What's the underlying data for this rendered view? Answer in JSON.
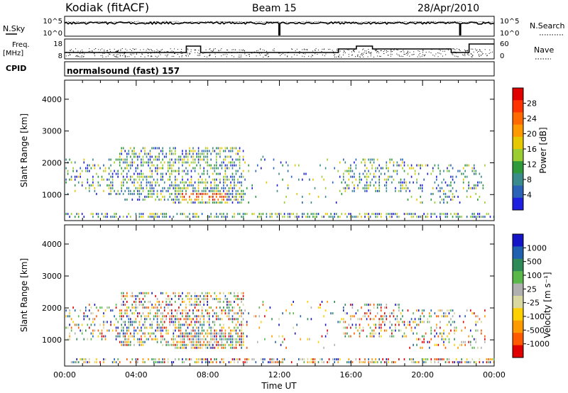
{
  "header": {
    "station": "Kodiak (fitACF)",
    "beam": "Beam 15",
    "date": "28/Apr/2010"
  },
  "strip_labels": {
    "nsky": "N.Sky",
    "nsky_ticks": [
      "10^5",
      "10^0"
    ],
    "nsearch": "N.Search",
    "nsearch_ticks": [
      "10^5",
      "10^0"
    ],
    "freq": "Freq.",
    "freq_unit": "[MHz]",
    "freq_ticks": [
      "18",
      "8"
    ],
    "nave": "Nave",
    "nave_ticks": [
      "60",
      "0"
    ],
    "cpid": "CPID",
    "program": "normalsound (fast) 157"
  },
  "colors": {
    "power_scale": [
      "#1f1fe0",
      "#2a62b8",
      "#3a8c8c",
      "#2e9a3c",
      "#9acd32",
      "#e6c800",
      "#ff9900",
      "#ff6a00",
      "#ff3300",
      "#e00000"
    ],
    "velocity_scale": [
      "#1515c8",
      "#2060b0",
      "#2e8b57",
      "#5ab84a",
      "#b0b0b0",
      "#d8d8a0",
      "#ffd000",
      "#ff9a00",
      "#ff5a00",
      "#e00000"
    ]
  },
  "chart_data": [
    {
      "type": "heatmap",
      "name": "power",
      "xlabel": "",
      "ylabel": "Slant Range [km]",
      "xlim": [
        0,
        24
      ],
      "ylim": [
        180,
        4600
      ],
      "y_ticks": [
        "1000",
        "2000",
        "3000",
        "4000"
      ],
      "colorbar": {
        "label": "Power [dB]",
        "ticks": [
          "4",
          "8",
          "12",
          "16",
          "20",
          "24",
          "28"
        ],
        "range": [
          0,
          32
        ]
      }
    },
    {
      "type": "heatmap",
      "name": "velocity",
      "xlabel": "Time UT",
      "ylabel": "Slant Range [km]",
      "xlim": [
        0,
        24
      ],
      "ylim": [
        180,
        4600
      ],
      "x_ticks": [
        "00:00",
        "04:00",
        "08:00",
        "12:00",
        "16:00",
        "20:00",
        "00:00"
      ],
      "y_ticks": [
        "1000",
        "2000",
        "3000",
        "4000"
      ],
      "colorbar": {
        "label": "Velocity [m s⁻¹]",
        "ticks": [
          "1000",
          "500",
          "100",
          "25",
          "-25",
          "-100",
          "-500",
          "-1000"
        ],
        "range": [
          -1250,
          1250
        ]
      }
    }
  ]
}
